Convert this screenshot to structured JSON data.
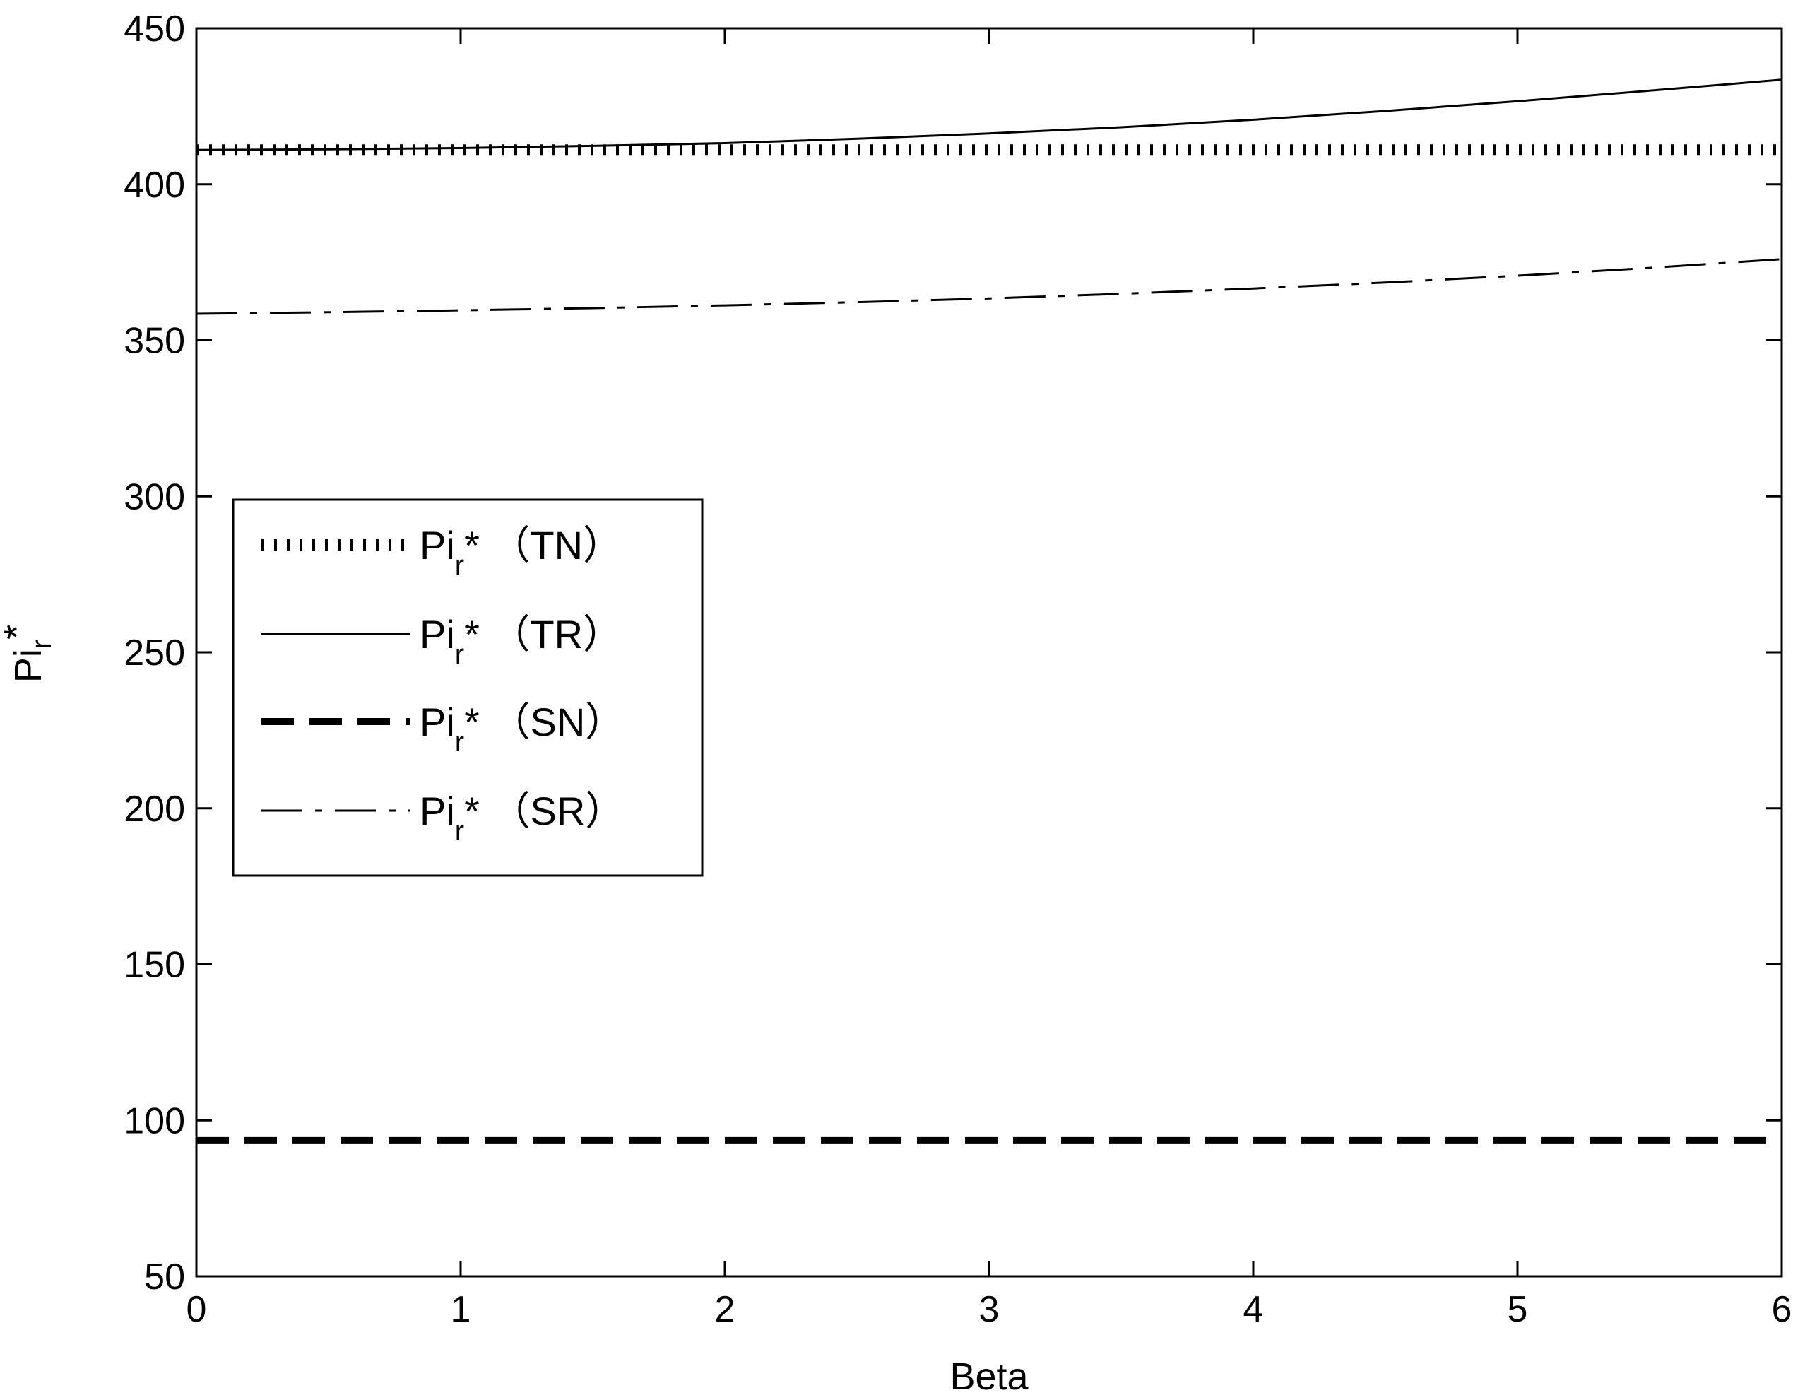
{
  "chart_data": {
    "type": "line",
    "xlabel": "Beta",
    "ylabel": {
      "base": "Pi",
      "subscript": "r",
      "suffix": "*"
    },
    "xlim": [
      0,
      6
    ],
    "ylim": [
      50,
      450
    ],
    "xticks": [
      0,
      1,
      2,
      3,
      4,
      5,
      6
    ],
    "yticks": [
      50,
      100,
      150,
      200,
      250,
      300,
      350,
      400,
      450
    ],
    "grid": false,
    "legend_position": "center-left",
    "series": [
      {
        "name": "Pi_r* (TN)",
        "label": {
          "base": "Pi",
          "sub": "r",
          "suffix": "* （TN）"
        },
        "style": "dotted",
        "x": [
          0,
          1,
          2,
          3,
          4,
          5,
          6
        ],
        "values": [
          411,
          411,
          411,
          411,
          411,
          411,
          411
        ]
      },
      {
        "name": "Pi_r* (TR)",
        "label": {
          "base": "Pi",
          "sub": "r",
          "suffix": "* （TR）"
        },
        "style": "solid",
        "x": [
          0,
          0.5,
          1,
          1.5,
          2,
          2.5,
          3,
          3.5,
          4,
          4.5,
          5,
          5.5,
          6
        ],
        "values": [
          411,
          411.2,
          411.6,
          412.3,
          413.2,
          414.6,
          416.3,
          418.3,
          420.7,
          423.5,
          426.6,
          430,
          433.5
        ]
      },
      {
        "name": "Pi_r* (SN)",
        "label": {
          "base": "Pi",
          "sub": "r",
          "suffix": "* （SN）"
        },
        "style": "dashed-thick",
        "x": [
          0,
          1,
          2,
          3,
          4,
          5,
          6
        ],
        "values": [
          93.5,
          93.5,
          93.5,
          93.5,
          93.5,
          93.5,
          93.5
        ]
      },
      {
        "name": "Pi_r* (SR)",
        "label": {
          "base": "Pi",
          "sub": "r",
          "suffix": "* （SR）"
        },
        "style": "dashdot",
        "x": [
          0,
          0.5,
          1,
          1.5,
          2,
          2.5,
          3,
          3.5,
          4,
          4.5,
          5,
          5.5,
          6
        ],
        "values": [
          358.5,
          359,
          359.6,
          360.3,
          361.2,
          362.2,
          363.4,
          364.9,
          366.6,
          368.5,
          370.7,
          373.2,
          376
        ]
      }
    ]
  }
}
